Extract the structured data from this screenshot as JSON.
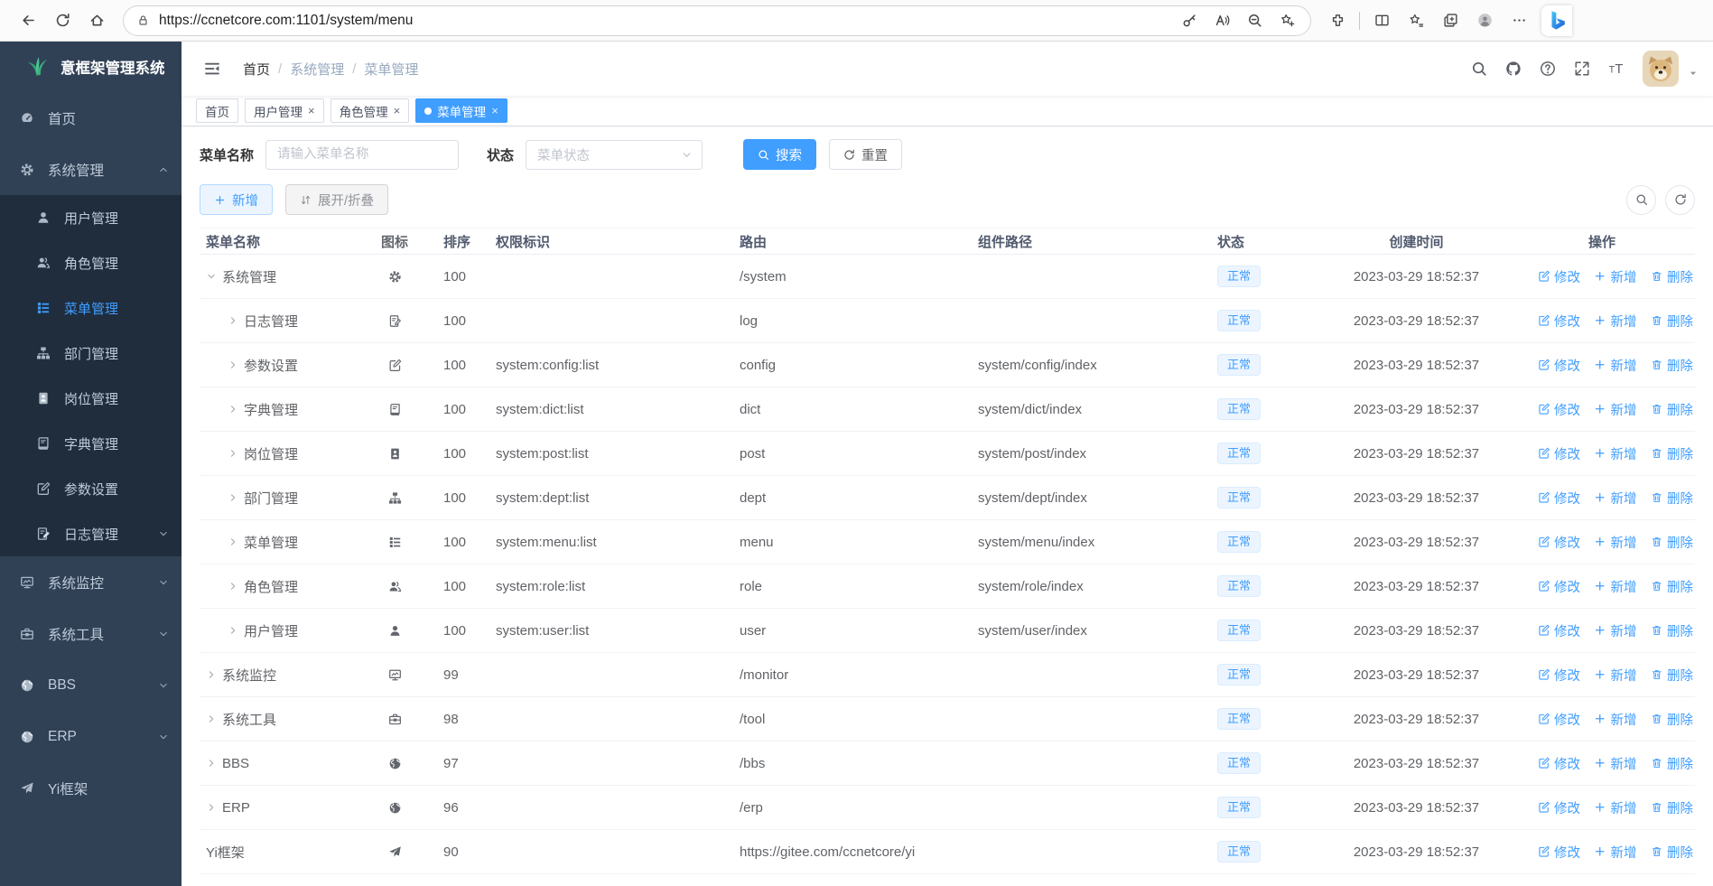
{
  "browser": {
    "url": "https://ccnetcore.com:1101/system/menu",
    "nav_icons": [
      "back",
      "refresh",
      "home"
    ],
    "address_icon": "lock",
    "address_action_icons": [
      "key",
      "read-aloud",
      "zoom-out",
      "favorite-add"
    ],
    "toolbar_icons": [
      "extensions",
      "split-screen",
      "favorites",
      "collections",
      "profile",
      "more"
    ],
    "assistant_icon": "bing-logo"
  },
  "sidebar": {
    "logo": {
      "icon": "leaf-logo",
      "title": "意框架管理系统"
    },
    "items": [
      {
        "label": "首页",
        "icon": "dashboard"
      },
      {
        "label": "系统管理",
        "icon": "gear",
        "chevron": "up",
        "expanded": true,
        "children": [
          {
            "label": "用户管理",
            "icon": "user"
          },
          {
            "label": "角色管理",
            "icon": "users"
          },
          {
            "label": "菜单管理",
            "icon": "menu-list",
            "active": true
          },
          {
            "label": "部门管理",
            "icon": "tree"
          },
          {
            "label": "岗位管理",
            "icon": "badge"
          },
          {
            "label": "字典管理",
            "icon": "book"
          },
          {
            "label": "参数设置",
            "icon": "edit-square"
          },
          {
            "label": "日志管理",
            "icon": "note-edit",
            "chevron": "down"
          }
        ]
      },
      {
        "label": "系统监控",
        "icon": "monitor",
        "chevron": "down"
      },
      {
        "label": "系统工具",
        "icon": "toolbox",
        "chevron": "down"
      },
      {
        "label": "BBS",
        "icon": "globe",
        "chevron": "down"
      },
      {
        "label": "ERP",
        "icon": "globe",
        "chevron": "down"
      },
      {
        "label": "Yi框架",
        "icon": "paper-plane"
      }
    ]
  },
  "navbar": {
    "menu_icon": "hamburger-fold",
    "breadcrumb": [
      "首页",
      "系统管理",
      "菜单管理"
    ],
    "separator": "/",
    "icons": [
      "search",
      "github",
      "question",
      "fullscreen",
      "text-size"
    ],
    "avatar_icon": "dog-avatar",
    "caret_icon": "caret-down"
  },
  "tabs": [
    {
      "label": "首页",
      "closable": false,
      "active": false
    },
    {
      "label": "用户管理",
      "closable": true,
      "active": false
    },
    {
      "label": "角色管理",
      "closable": true,
      "active": false
    },
    {
      "label": "菜单管理",
      "closable": true,
      "active": true
    }
  ],
  "filters": {
    "name_label": "菜单名称",
    "name_placeholder": "请输入菜单名称",
    "status_label": "状态",
    "status_placeholder": "菜单状态",
    "search_label": "搜索",
    "reset_label": "重置"
  },
  "toolbar": {
    "add_label": "新增",
    "expand_label": "展开/折叠",
    "icon_buttons": [
      "search",
      "refresh"
    ]
  },
  "table": {
    "columns": [
      "菜单名称",
      "图标",
      "排序",
      "权限标识",
      "路由",
      "组件路径",
      "状态",
      "创建时间",
      "操作"
    ],
    "actions": {
      "edit": "修改",
      "add": "新增",
      "delete": "删除"
    },
    "rows": [
      {
        "name": "系统管理",
        "icon": "gear",
        "level": 0,
        "arrow": "down",
        "order": "100",
        "perm": "",
        "route": "/system",
        "component": "",
        "status": "正常",
        "created": "2023-03-29 18:52:37"
      },
      {
        "name": "日志管理",
        "icon": "note-edit",
        "level": 1,
        "arrow": "right",
        "order": "100",
        "perm": "",
        "route": "log",
        "component": "",
        "status": "正常",
        "created": "2023-03-29 18:52:37"
      },
      {
        "name": "参数设置",
        "icon": "edit-square",
        "level": 1,
        "arrow": "right",
        "order": "100",
        "perm": "system:config:list",
        "route": "config",
        "component": "system/config/index",
        "status": "正常",
        "created": "2023-03-29 18:52:37"
      },
      {
        "name": "字典管理",
        "icon": "book",
        "level": 1,
        "arrow": "right",
        "order": "100",
        "perm": "system:dict:list",
        "route": "dict",
        "component": "system/dict/index",
        "status": "正常",
        "created": "2023-03-29 18:52:37"
      },
      {
        "name": "岗位管理",
        "icon": "badge",
        "level": 1,
        "arrow": "right",
        "order": "100",
        "perm": "system:post:list",
        "route": "post",
        "component": "system/post/index",
        "status": "正常",
        "created": "2023-03-29 18:52:37"
      },
      {
        "name": "部门管理",
        "icon": "tree",
        "level": 1,
        "arrow": "right",
        "order": "100",
        "perm": "system:dept:list",
        "route": "dept",
        "component": "system/dept/index",
        "status": "正常",
        "created": "2023-03-29 18:52:37"
      },
      {
        "name": "菜单管理",
        "icon": "menu-list",
        "level": 1,
        "arrow": "right",
        "order": "100",
        "perm": "system:menu:list",
        "route": "menu",
        "component": "system/menu/index",
        "status": "正常",
        "created": "2023-03-29 18:52:37"
      },
      {
        "name": "角色管理",
        "icon": "users",
        "level": 1,
        "arrow": "right",
        "order": "100",
        "perm": "system:role:list",
        "route": "role",
        "component": "system/role/index",
        "status": "正常",
        "created": "2023-03-29 18:52:37"
      },
      {
        "name": "用户管理",
        "icon": "user",
        "level": 1,
        "arrow": "right",
        "order": "100",
        "perm": "system:user:list",
        "route": "user",
        "component": "system/user/index",
        "status": "正常",
        "created": "2023-03-29 18:52:37"
      },
      {
        "name": "系统监控",
        "icon": "monitor",
        "level": 0,
        "arrow": "right",
        "order": "99",
        "perm": "",
        "route": "/monitor",
        "component": "",
        "status": "正常",
        "created": "2023-03-29 18:52:37"
      },
      {
        "name": "系统工具",
        "icon": "toolbox",
        "level": 0,
        "arrow": "right",
        "order": "98",
        "perm": "",
        "route": "/tool",
        "component": "",
        "status": "正常",
        "created": "2023-03-29 18:52:37"
      },
      {
        "name": "BBS",
        "icon": "globe",
        "level": 0,
        "arrow": "right",
        "order": "97",
        "perm": "",
        "route": "/bbs",
        "component": "",
        "status": "正常",
        "created": "2023-03-29 18:52:37"
      },
      {
        "name": "ERP",
        "icon": "globe",
        "level": 0,
        "arrow": "right",
        "order": "96",
        "perm": "",
        "route": "/erp",
        "component": "",
        "status": "正常",
        "created": "2023-03-29 18:52:37"
      },
      {
        "name": "Yi框架",
        "icon": "paper-plane",
        "level": 0,
        "arrow": "none",
        "order": "90",
        "perm": "",
        "route": "https://gitee.com/ccnetcore/yi",
        "component": "",
        "status": "正常",
        "created": "2023-03-29 18:52:37"
      }
    ]
  },
  "colors": {
    "primary": "#409eff",
    "sidebar_bg": "#304156",
    "submenu_bg": "#1f2d3d",
    "status_tag_bg": "#ecf5ff",
    "status_tag_text": "#409eff"
  }
}
